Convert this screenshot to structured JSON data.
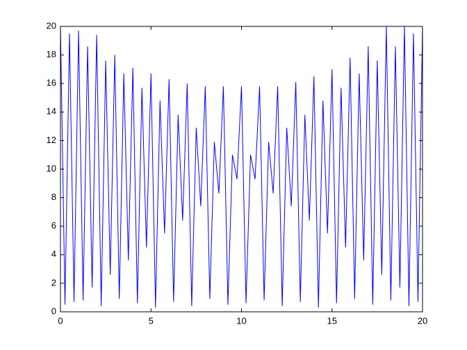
{
  "chart_data": {
    "type": "line",
    "x": [
      0,
      0.25,
      0.5,
      0.75,
      1,
      1.25,
      1.5,
      1.75,
      2,
      2.25,
      2.5,
      2.75,
      3,
      3.25,
      3.5,
      3.75,
      4,
      4.25,
      4.5,
      4.75,
      5,
      5.25,
      5.5,
      5.75,
      6,
      6.25,
      6.5,
      6.75,
      7,
      7.25,
      7.5,
      7.75,
      8,
      8.25,
      8.5,
      8.75,
      9,
      9.25,
      9.5,
      9.75,
      10,
      10.25,
      10.5,
      10.75,
      11,
      11.25,
      11.5,
      11.75,
      12,
      12.25,
      12.5,
      12.75,
      13,
      13.25,
      13.5,
      13.75,
      14,
      14.25,
      14.5,
      14.75,
      15,
      15.25,
      15.5,
      15.75,
      16,
      16.25,
      16.5,
      16.75,
      17,
      17.25,
      17.5,
      17.75,
      18,
      18.25,
      18.5,
      18.75,
      19,
      19.25,
      19.5,
      19.75,
      20
    ],
    "series": [
      {
        "color": "#0000ff",
        "values": [
          20,
          0.5,
          19.5,
          0.7,
          19.7,
          0.8,
          18.6,
          1.7,
          19.4,
          0.4,
          17.6,
          2.6,
          18,
          0.9,
          16.7,
          3.6,
          17.1,
          0.6,
          15.7,
          4.5,
          16.7,
          0.3,
          14.8,
          5.5,
          16.3,
          0.7,
          13.8,
          6.4,
          16,
          0.4,
          12.9,
          7.4,
          15.8,
          0.9,
          11.9,
          8.3,
          15.8,
          0.5,
          11,
          9.3,
          15.8,
          0.6,
          11,
          9.3,
          15.8,
          0.8,
          11.9,
          8.3,
          15.8,
          0.4,
          12.9,
          7.4,
          16.1,
          0.7,
          13.8,
          6.4,
          16.5,
          0.3,
          14.8,
          5.5,
          17,
          0.6,
          15.7,
          4.5,
          17.8,
          0.9,
          16.7,
          3.6,
          18.6,
          0.5,
          17.6,
          2.6,
          20,
          0.8,
          18.6,
          1.7,
          20,
          0.4,
          19.5,
          0.7,
          20
        ]
      }
    ],
    "xlim": [
      0,
      20
    ],
    "xticks": [
      0,
      5,
      10,
      15,
      20
    ],
    "ylim": [
      0,
      20
    ],
    "yticks": [
      0,
      2,
      4,
      6,
      8,
      10,
      12,
      14,
      16,
      18,
      20
    ],
    "grid": false
  }
}
